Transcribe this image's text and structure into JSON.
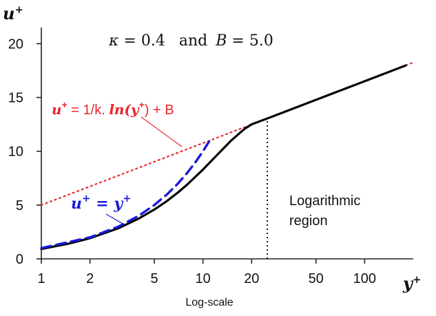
{
  "chart_data": {
    "type": "line",
    "xscale": "log",
    "xlim": [
      1,
      200
    ],
    "ylim": [
      0,
      21.5
    ],
    "grid": false,
    "xlabel": "y",
    "xlabel_sup": "+",
    "ylabel": "u",
    "ylabel_sup": "+",
    "scale_note": "Log-scale",
    "xticks": [
      {
        "value": 1,
        "label": "1"
      },
      {
        "value": 2,
        "label": "2"
      },
      {
        "value": 5,
        "label": "5"
      },
      {
        "value": 10,
        "label": "10"
      },
      {
        "value": 20,
        "label": "20"
      },
      {
        "value": 50,
        "label": "50"
      },
      {
        "value": 100,
        "label": "100"
      }
    ],
    "yticks": [
      {
        "value": 0,
        "label": "0"
      },
      {
        "value": 5,
        "label": "5"
      },
      {
        "value": 10,
        "label": "10"
      },
      {
        "value": 15,
        "label": "15"
      },
      {
        "value": 20,
        "label": "20"
      }
    ],
    "annotations": {
      "params": {
        "kappa_sym": "κ",
        "kappa_eq": " = 0.4",
        "and": "and",
        "b_sym": "B",
        "b_eq": " = 5.0"
      },
      "log_law": {
        "u": "u",
        "sup": "+",
        "rest": " = 1/k.  ",
        "ln": "ln",
        "y": "(y",
        "ysup": "+",
        "tail": ") + B"
      },
      "linear": {
        "u": "u",
        "sup": "+",
        "eq": " = ",
        "y": "y",
        "ysup": "+"
      },
      "region_line1": "Logarithmic",
      "region_line2": "region"
    },
    "boundary_x": 25,
    "series": [
      {
        "style": "solid",
        "color": "#000000",
        "x": [
          1,
          1.5,
          2,
          3,
          4,
          5,
          6,
          7,
          8,
          10,
          12,
          15,
          18,
          20,
          25,
          30,
          50,
          100,
          180
        ],
        "y": [
          0.92,
          1.44,
          1.92,
          2.85,
          3.74,
          4.58,
          5.39,
          6.17,
          6.91,
          8.3,
          9.53,
          11.02,
          12.06,
          12.5,
          13.05,
          13.5,
          14.78,
          16.51,
          17.98
        ]
      },
      {
        "style": "dashed",
        "color": "#1a1adb",
        "x": [
          1,
          2,
          3,
          4,
          5,
          6,
          7,
          8,
          9,
          10,
          11
        ],
        "y": [
          1,
          2,
          3,
          4,
          5,
          6,
          7,
          8,
          9,
          10,
          11
        ]
      },
      {
        "style": "dotted",
        "color": "#e8262b",
        "x": [
          1,
          200
        ],
        "y": [
          5.0,
          18.25
        ]
      }
    ]
  }
}
